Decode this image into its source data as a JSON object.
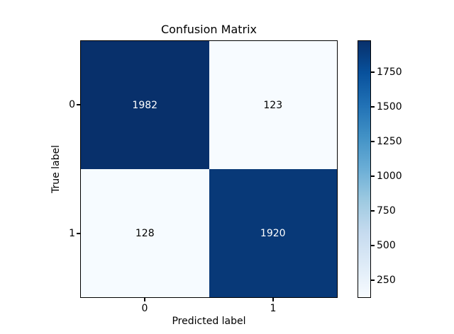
{
  "figure": {
    "background": "#ffffff"
  },
  "chart_data": {
    "type": "heatmap",
    "title": "Confusion Matrix",
    "xlabel": "Predicted label",
    "ylabel": "True label",
    "x_tick_labels": [
      "0",
      "1"
    ],
    "y_tick_labels": [
      "0",
      "1"
    ],
    "matrix": [
      [
        1982,
        123
      ],
      [
        128,
        1920
      ]
    ],
    "vmin": 123,
    "vmax": 1982,
    "colormap": "Blues",
    "colormap_stops": [
      "#f7fbff",
      "#deebf7",
      "#c6dbef",
      "#9ecae1",
      "#6baed6",
      "#4292c6",
      "#2171b5",
      "#08519c",
      "#08306b"
    ],
    "colorbar_ticks": [
      250,
      500,
      750,
      1000,
      1250,
      1500,
      1750
    ],
    "colorbar_position": "right",
    "grid": false,
    "cell_colors": [
      [
        "#08306b",
        "#f7fbff"
      ],
      [
        "#f6fbff",
        "#083978"
      ]
    ],
    "cell_text_colors": [
      [
        "#ffffff",
        "#000000"
      ],
      [
        "#000000",
        "#ffffff"
      ]
    ]
  }
}
